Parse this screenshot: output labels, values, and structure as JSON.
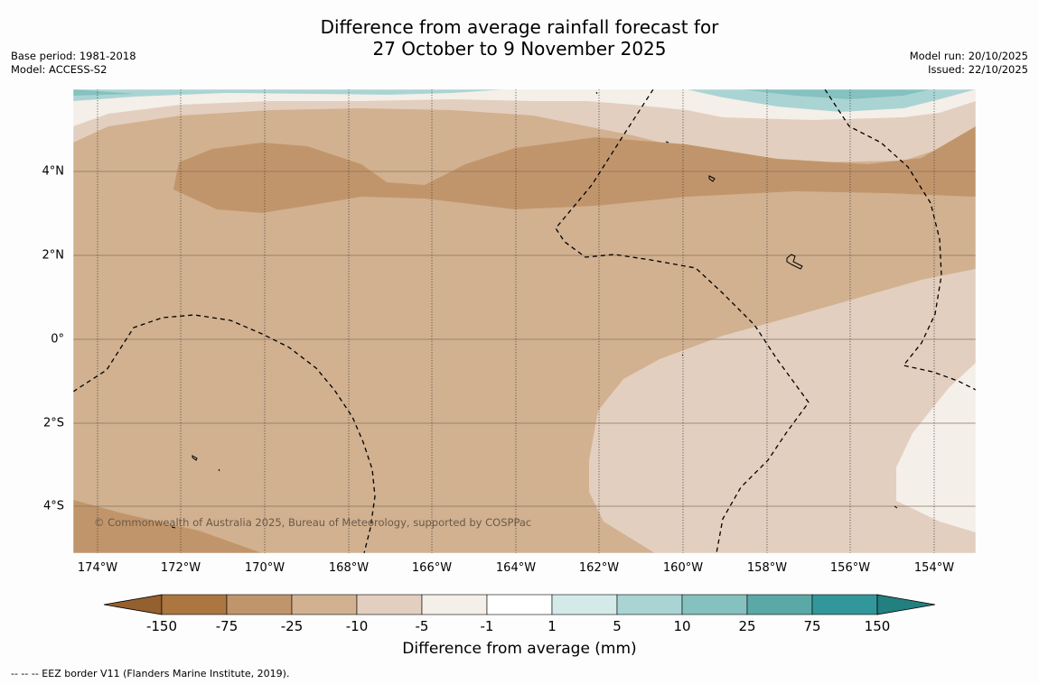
{
  "title": {
    "line1": "Difference from average rainfall forecast for",
    "line2": "27 October to 9 November 2025"
  },
  "meta_left": {
    "base_period": "Base period: 1981-2018",
    "model": "Model: ACCESS-S2"
  },
  "meta_right": {
    "model_run": "Model run: 20/10/2025",
    "issued": "Issued: 22/10/2025"
  },
  "map": {
    "lat_labels": [
      "4°N",
      "2°N",
      "0°",
      "2°S",
      "4°S"
    ],
    "lon_labels": [
      "174°W",
      "172°W",
      "170°W",
      "168°W",
      "166°W",
      "164°W",
      "162°W",
      "160°W",
      "158°W",
      "156°W",
      "154°W"
    ],
    "copyright": "© Commonwealth of Australia 2025, Bureau of Meteorology, supported by COSPPac",
    "colors": {
      "band_neg75": "#c1956b",
      "band_neg25": "#d1b190",
      "band_neg10": "#e3cfbf",
      "band_neg5": "#f4efe9",
      "band_pos5": "#aad4d3",
      "band_pos10": "#84c1bf"
    }
  },
  "colorbar": {
    "label": "Difference from average (mm)",
    "ticks": [
      "-150",
      "-75",
      "-25",
      "-10",
      "-5",
      "-1",
      "1",
      "5",
      "10",
      "25",
      "75",
      "150"
    ],
    "colors": [
      "#ac7640",
      "#c1956b",
      "#d1b190",
      "#e3cfbf",
      "#f4efe9",
      "#ffffff",
      "#d4eae9",
      "#aad4d3",
      "#84c1bf",
      "#5ba9a7",
      "#32979a"
    ],
    "extend_low_color": "#946030",
    "extend_high_color": "#22807f"
  },
  "footnote": "--  --  -- EEZ border V11 (Flanders Marine Institute, 2019)."
}
